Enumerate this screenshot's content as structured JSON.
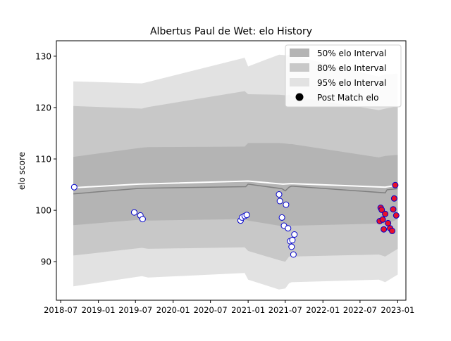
{
  "chart_data": {
    "type": "area",
    "title": "Albertus Paul de Wet: elo History",
    "xlabel": "",
    "ylabel": "elo score",
    "xlim": [
      "2018-06-10",
      "2023-02-10"
    ],
    "ylim": [
      82.5,
      133
    ],
    "x_ticks": [
      "2018-07",
      "2019-01",
      "2019-07",
      "2020-01",
      "2020-07",
      "2021-01",
      "2021-07",
      "2022-01",
      "2022-07",
      "2023-01"
    ],
    "y_ticks": [
      90,
      100,
      110,
      120,
      130
    ],
    "grid": false,
    "legend": {
      "placement": "top-right",
      "entries": [
        "50% elo Interval",
        "80% elo Interval",
        "95% elo Interval",
        "Post Match elo"
      ]
    },
    "colors": {
      "band_50": "#b4b4b4",
      "band_80": "#c8c8c8",
      "band_95": "#e2e2e2",
      "mean_line": "#ffffff",
      "median_line": "#808080",
      "marker_face": "#ffffff",
      "marker_edge": "#0000cc",
      "recent_marker_face": "#e8102a"
    },
    "bands": {
      "x": [
        "2018-09-01",
        "2019-08-01",
        "2019-09-01",
        "2020-12-15",
        "2021-01-01",
        "2021-06-01",
        "2021-07-01",
        "2021-07-20",
        "2021-08-01",
        "2022-10-01",
        "2022-11-01",
        "2023-01-01"
      ],
      "lower95": [
        85.2,
        87.2,
        86.9,
        87.8,
        86.5,
        84.6,
        84.8,
        85.8,
        86.0,
        86.5,
        86.0,
        87.5
      ],
      "upper95": [
        125.1,
        124.7,
        125.0,
        129.7,
        128.0,
        130.3,
        130.2,
        130.3,
        130.2,
        126.0,
        126.5,
        126.6
      ],
      "lower80": [
        91.2,
        92.7,
        92.5,
        92.8,
        92.1,
        90.3,
        90.0,
        91.0,
        91.0,
        91.4,
        91.0,
        92.5
      ],
      "upper80": [
        120.3,
        119.8,
        120.1,
        123.2,
        122.6,
        122.5,
        122.4,
        122.5,
        122.2,
        119.5,
        119.8,
        120.2
      ],
      "lower50": [
        97.1,
        98.2,
        98.0,
        98.3,
        98.0,
        97.0,
        96.6,
        97.1,
        97.0,
        97.4,
        97.2,
        98.3
      ],
      "upper50": [
        110.4,
        112.2,
        112.3,
        112.4,
        113.1,
        113.1,
        113.0,
        112.9,
        112.9,
        110.3,
        110.6,
        110.8
      ]
    },
    "mean_line": {
      "x": [
        "2018-09-01",
        "2019-07-15",
        "2021-01-01",
        "2021-06-20",
        "2021-08-01",
        "2022-11-01",
        "2023-01-01"
      ],
      "y": [
        104.4,
        105.1,
        105.7,
        105.1,
        105.2,
        104.5,
        104.9
      ]
    },
    "median_line": {
      "x": [
        "2018-09-01",
        "2019-07-01",
        "2019-08-01",
        "2020-12-20",
        "2021-01-01",
        "2021-06-15",
        "2021-07-01",
        "2021-07-20",
        "2021-08-01",
        "2022-11-01",
        "2022-11-10",
        "2023-01-01"
      ],
      "y": [
        103.2,
        104.2,
        104.3,
        104.6,
        105.1,
        104.2,
        103.8,
        104.5,
        104.7,
        103.4,
        104.0,
        104.2
      ]
    },
    "series": [
      {
        "name": "Post Match elo",
        "x": [
          "2018-09-05",
          "2019-06-25",
          "2019-07-25",
          "2019-08-05",
          "2020-11-25",
          "2020-12-02",
          "2020-12-15",
          "2020-12-25",
          "2021-06-01",
          "2021-06-05",
          "2021-06-15",
          "2021-06-25",
          "2021-07-05",
          "2021-07-15",
          "2021-07-25",
          "2021-08-01",
          "2021-08-05",
          "2021-08-10",
          "2021-08-15"
        ],
        "y": [
          104.5,
          99.6,
          99.0,
          98.3,
          98.0,
          98.6,
          98.9,
          99.1,
          103.1,
          101.8,
          98.6,
          97.0,
          101.1,
          96.5,
          94.0,
          92.9,
          94.2,
          91.4,
          95.3
        ]
      },
      {
        "name": "",
        "x": [
          "2022-10-05",
          "2022-10-10",
          "2022-10-15",
          "2022-10-20",
          "2022-10-25",
          "2022-11-01",
          "2022-11-15",
          "2022-11-25",
          "2022-12-05",
          "2022-12-10",
          "2022-12-15",
          "2022-12-20",
          "2022-12-25"
        ],
        "y": [
          97.9,
          100.5,
          100.1,
          98.2,
          96.3,
          99.3,
          97.5,
          96.5,
          96.0,
          100.2,
          102.3,
          104.9,
          99.0
        ]
      }
    ]
  }
}
